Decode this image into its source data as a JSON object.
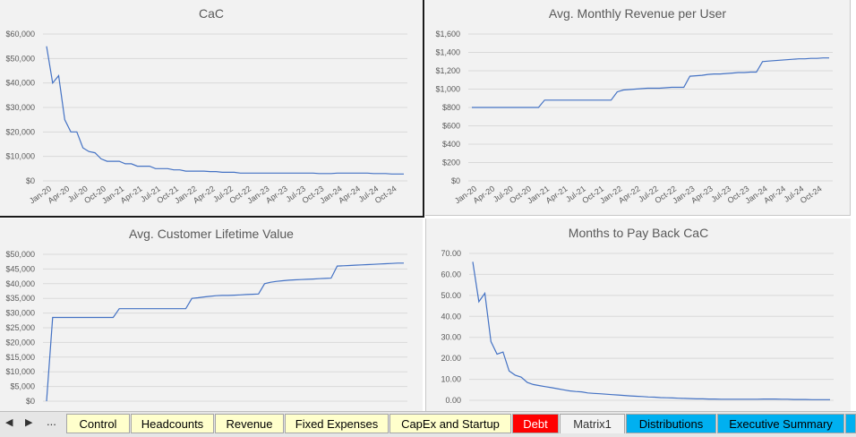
{
  "chart_data": [
    {
      "type": "line",
      "title": "CaC",
      "y_ticks": [
        "$0",
        "$10,000",
        "$20,000",
        "$30,000",
        "$40,000",
        "$50,000",
        "$60,000"
      ],
      "ylim": [
        0,
        60000
      ],
      "x_ticks": [
        "Jan-20",
        "Apr-20",
        "Jul-20",
        "Oct-20",
        "Jan-21",
        "Apr-21",
        "Jul-21",
        "Oct-21",
        "Jan-22",
        "Apr-22",
        "Jul-22",
        "Oct-22",
        "Jan-23",
        "Apr-23",
        "Jul-23",
        "Oct-23",
        "Jan-24",
        "Apr-24",
        "Jul-24",
        "Oct-24"
      ],
      "values": [
        55000,
        40000,
        43000,
        25000,
        20000,
        20000,
        13500,
        12000,
        11500,
        9000,
        8000,
        8000,
        8000,
        7000,
        7000,
        6000,
        6000,
        6000,
        5000,
        5000,
        5000,
        4500,
        4500,
        4000,
        4000,
        4000,
        4000,
        3800,
        3800,
        3500,
        3500,
        3500,
        3200,
        3200,
        3200,
        3200,
        3200,
        3200,
        3200,
        3200,
        3200,
        3200,
        3200,
        3200,
        3200,
        3000,
        3000,
        3000,
        3200,
        3200,
        3200,
        3200,
        3200,
        3200,
        3000,
        3000,
        3000,
        2800,
        2800,
        2800
      ]
    },
    {
      "type": "line",
      "title": "Avg. Monthly Revenue per User",
      "y_ticks": [
        "$0",
        "$200",
        "$400",
        "$600",
        "$800",
        "$1,000",
        "$1,200",
        "$1,400",
        "$1,600"
      ],
      "ylim": [
        0,
        1600
      ],
      "x_ticks": [
        "Jan-20",
        "Apr-20",
        "Jul-20",
        "Oct-20",
        "Jan-21",
        "Apr-21",
        "Jul-21",
        "Oct-21",
        "Jan-22",
        "Apr-22",
        "Jul-22",
        "Oct-22",
        "Jan-23",
        "Apr-23",
        "Jul-23",
        "Oct-23",
        "Jan-24",
        "Apr-24",
        "Jul-24",
        "Oct-24"
      ],
      "values": [
        800,
        800,
        800,
        800,
        800,
        800,
        800,
        800,
        800,
        800,
        800,
        800,
        880,
        880,
        880,
        880,
        880,
        880,
        880,
        880,
        880,
        880,
        880,
        880,
        970,
        990,
        995,
        1000,
        1005,
        1010,
        1010,
        1010,
        1015,
        1020,
        1020,
        1020,
        1140,
        1145,
        1150,
        1160,
        1165,
        1165,
        1170,
        1175,
        1180,
        1180,
        1185,
        1185,
        1300,
        1305,
        1310,
        1315,
        1320,
        1325,
        1330,
        1330,
        1335,
        1335,
        1340,
        1340
      ]
    },
    {
      "type": "line",
      "title": "Avg. Customer Lifetime Value",
      "y_ticks": [
        "$0",
        "$5,000",
        "$10,000",
        "$15,000",
        "$20,000",
        "$25,000",
        "$30,000",
        "$35,000",
        "$40,000",
        "$45,000",
        "$50,000"
      ],
      "ylim": [
        0,
        50000
      ],
      "values": [
        0,
        28500,
        28500,
        28500,
        28500,
        28500,
        28500,
        28500,
        28500,
        28500,
        28500,
        28500,
        31500,
        31500,
        31500,
        31500,
        31500,
        31500,
        31500,
        31500,
        31500,
        31500,
        31500,
        31500,
        35000,
        35200,
        35500,
        35700,
        35900,
        36000,
        36000,
        36100,
        36200,
        36300,
        36400,
        36500,
        40000,
        40500,
        40800,
        41000,
        41200,
        41300,
        41400,
        41500,
        41600,
        41700,
        41800,
        41900,
        46000,
        46100,
        46200,
        46300,
        46400,
        46500,
        46600,
        46700,
        46800,
        46900,
        47000,
        47000
      ]
    },
    {
      "type": "line",
      "title": "Months to Pay Back CaC",
      "y_ticks": [
        "0.00",
        "10.00",
        "20.00",
        "30.00",
        "40.00",
        "50.00",
        "60.00",
        "70.00"
      ],
      "ylim": [
        0,
        70
      ],
      "values": [
        66,
        47,
        51,
        28,
        22,
        23,
        14,
        12,
        11,
        8.5,
        7.5,
        7,
        6.5,
        6,
        5.5,
        5,
        4.5,
        4.2,
        4,
        3.5,
        3.3,
        3.1,
        2.9,
        2.7,
        2.5,
        2.3,
        2.1,
        1.9,
        1.8,
        1.6,
        1.5,
        1.3,
        1.2,
        1.1,
        1,
        0.9,
        0.8,
        0.7,
        0.7,
        0.6,
        0.6,
        0.5,
        0.5,
        0.5,
        0.5,
        0.5,
        0.5,
        0.5,
        0.6,
        0.6,
        0.6,
        0.5,
        0.5,
        0.4,
        0.4,
        0.4,
        0.3,
        0.3,
        0.3,
        0.3
      ]
    }
  ],
  "sheet_tabs": {
    "nav_prev": "◀",
    "nav_next": "▶",
    "more": "...",
    "tabs": [
      {
        "label": "Control",
        "color": "#ffffcc"
      },
      {
        "label": "Headcounts",
        "color": "#ffffcc"
      },
      {
        "label": "Revenue",
        "color": "#ffffcc"
      },
      {
        "label": "Fixed Expenses",
        "color": "#ffffcc"
      },
      {
        "label": "CapEx and Startup",
        "color": "#ffffcc"
      },
      {
        "label": "Debt",
        "color": "#ff0000"
      },
      {
        "label": "Matrix1",
        "color": "#f2f2f2"
      },
      {
        "label": "Distributions",
        "color": "#00b0f0"
      },
      {
        "label": "Executive Summary",
        "color": "#00b0f0"
      }
    ]
  }
}
